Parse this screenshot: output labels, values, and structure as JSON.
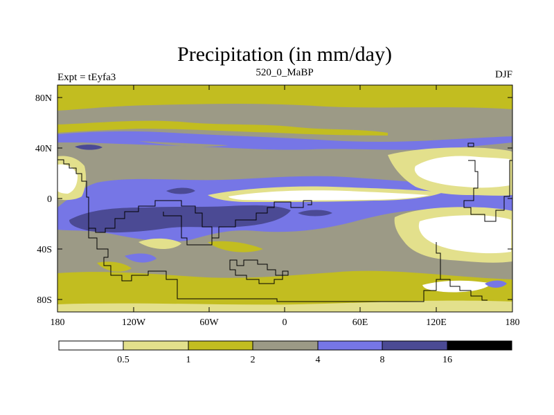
{
  "figure": {
    "title": "Precipitation (in mm/day)",
    "left_label": "Expt = tEyfa3",
    "center_label": "520_0_MaBP",
    "right_label": "DJF"
  },
  "axes": {
    "lat_ticks": [
      "80N",
      "40N",
      "0",
      "40S",
      "80S"
    ],
    "lon_ticks": [
      "180",
      "120W",
      "60W",
      "0",
      "60E",
      "120E",
      "180"
    ]
  },
  "legend": {
    "bins": [
      {
        "color": "#ffffff"
      },
      {
        "color": "#e3e08c"
      },
      {
        "color": "#c2bd20"
      },
      {
        "color": "#9c9a86"
      },
      {
        "color": "#7676e6"
      },
      {
        "color": "#4b4a94"
      },
      {
        "color": "#000000"
      }
    ],
    "labels": [
      "0.5",
      "1",
      "2",
      "4",
      "8",
      "16"
    ]
  },
  "colors": {
    "white": "#ffffff",
    "pale": "#e3e08c",
    "olive": "#c2bd20",
    "gray": "#9c9a86",
    "blue": "#7676e6",
    "dark": "#4b4a94",
    "black": "#000000"
  }
}
